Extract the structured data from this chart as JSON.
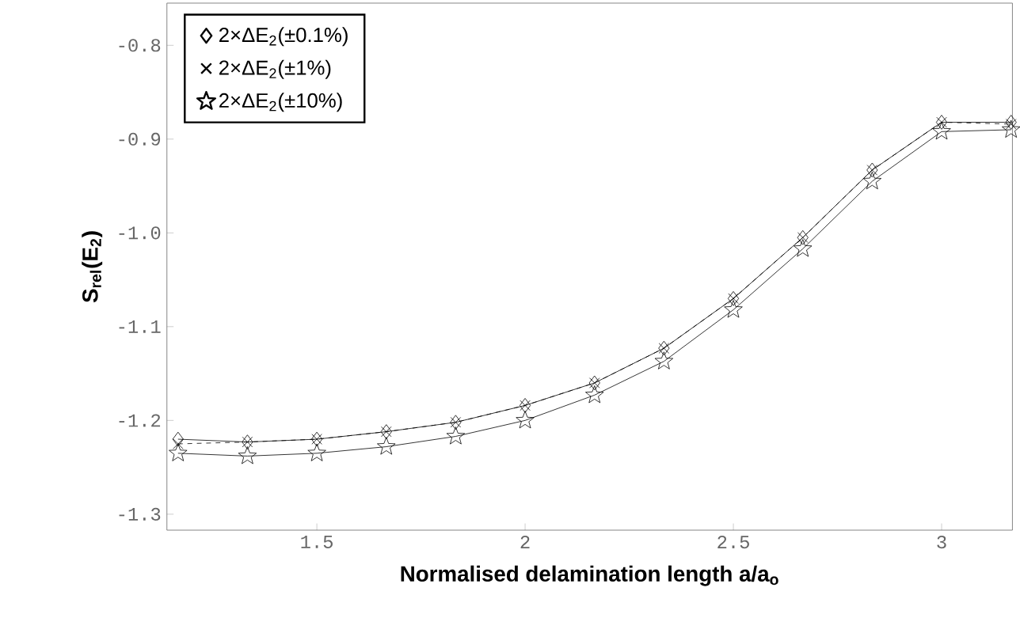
{
  "chart_data": {
    "type": "line",
    "xlabel": "Normalised delamination length a/a$_{o}$",
    "ylabel": "S$_{rel}$(E$_{2}$)",
    "x": [
      1.1667,
      1.3333,
      1.5,
      1.6667,
      1.8333,
      2.0,
      2.1667,
      2.3333,
      2.5,
      2.6667,
      2.8333,
      3.0,
      3.1667
    ],
    "series": [
      {
        "name": "2×ΔE$_{2}$(±0.1%)",
        "color": "#000000",
        "marker": "diamond",
        "line_style": "solid",
        "values": [
          -1.22,
          -1.223,
          -1.22,
          -1.212,
          -1.202,
          -1.184,
          -1.16,
          -1.123,
          -1.07,
          -1.005,
          -0.933,
          -0.882,
          -0.882
        ]
      },
      {
        "name": "2×ΔE$_{2}$(±1%)",
        "color": "#000000",
        "marker": "cross",
        "line_style": "dashed",
        "values": [
          -1.225,
          -1.223,
          -1.22,
          -1.212,
          -1.202,
          -1.184,
          -1.16,
          -1.123,
          -1.07,
          -1.005,
          -0.933,
          -0.882,
          -0.884
        ]
      },
      {
        "name": "2×ΔE$_{2}$(±10%)",
        "color": "#000000",
        "marker": "star",
        "line_style": "solid",
        "values": [
          -1.235,
          -1.238,
          -1.235,
          -1.228,
          -1.217,
          -1.2,
          -1.173,
          -1.137,
          -1.082,
          -1.017,
          -0.945,
          -0.892,
          -0.89
        ]
      }
    ],
    "xlim": [
      1.14,
      3.17
    ],
    "ylim": [
      -1.317,
      -0.755
    ],
    "xticks": [
      1.5,
      2,
      2.5,
      3
    ],
    "yticks": [
      {
        "value": -1.3,
        "label": "-1.3"
      },
      {
        "value": -1.2,
        "label": "-1.2"
      },
      {
        "value": -1.1,
        "label": "-1.1"
      },
      {
        "value": -1.0,
        "label": "-1.0"
      },
      {
        "value": -0.9,
        "label": "-0.9"
      },
      {
        "value": -0.8,
        "label": "-0.8"
      }
    ],
    "legend": "top left",
    "grid": false
  }
}
